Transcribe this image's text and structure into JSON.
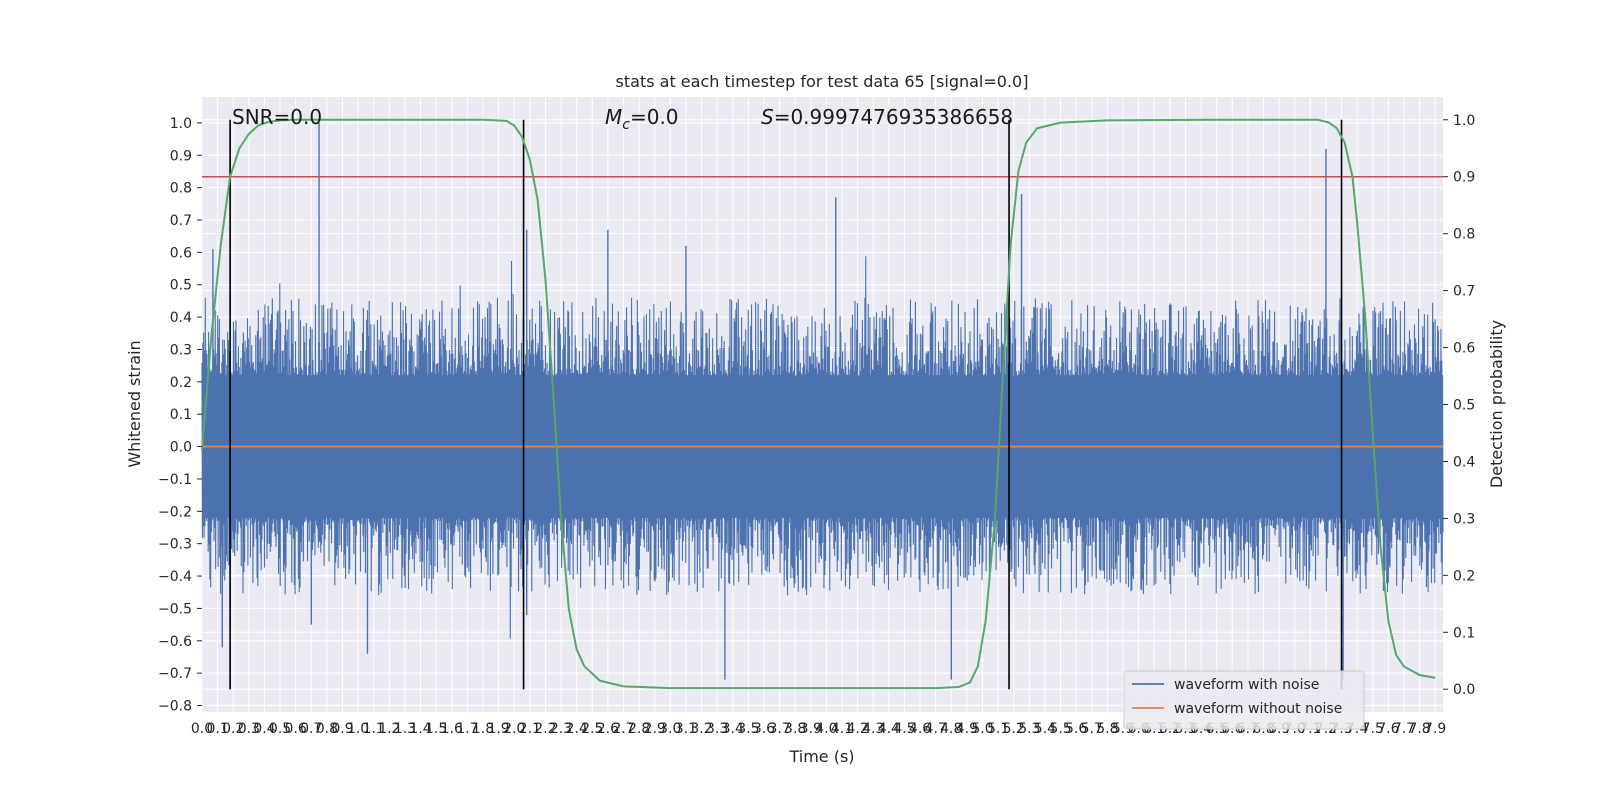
{
  "chart_data": {
    "type": "line",
    "title": "stats at each timestep for test data 65 [signal=0.0]",
    "xlabel": "Time (s)",
    "ylabel": "Whitened strain",
    "y2label": "Detection probability",
    "xlim": [
      0.0,
      7.95
    ],
    "ylim": [
      -0.82,
      1.08
    ],
    "y2lim": [
      -0.04,
      1.04
    ],
    "x_ticks": [
      0.0,
      0.1,
      0.2,
      0.3,
      0.4,
      0.5,
      0.6,
      0.7,
      0.8,
      0.9,
      1.0,
      1.1,
      1.2,
      1.3,
      1.4,
      1.5,
      1.6,
      1.7,
      1.8,
      1.9,
      2.0,
      2.1,
      2.2,
      2.3,
      2.4,
      2.5,
      2.6,
      2.7,
      2.8,
      2.9,
      3.0,
      3.1,
      3.2,
      3.3,
      3.4,
      3.5,
      3.6,
      3.7,
      3.8,
      3.9,
      4.0,
      4.1,
      4.2,
      4.3,
      4.4,
      4.5,
      4.6,
      4.7,
      4.8,
      4.9,
      5.0,
      5.1,
      5.2,
      5.3,
      5.4,
      5.5,
      5.6,
      5.7,
      5.8,
      5.9,
      6.0,
      6.1,
      6.2,
      6.3,
      6.4,
      6.5,
      6.6,
      6.7,
      6.8,
      6.9,
      7.0,
      7.1,
      7.2,
      7.3,
      7.4,
      7.5,
      7.6,
      7.7,
      7.8,
      7.9
    ],
    "x_tick_labels": [
      "0.0",
      "0.1",
      "0.2",
      "0.3",
      "0.4",
      "0.5",
      "0.6",
      "0.7",
      "0.8",
      "0.9",
      "1.0",
      "1.1",
      "1.2",
      "1.3",
      "1.4",
      "1.5",
      "1.6",
      "1.7",
      "1.8",
      "1.9",
      "2.0",
      "2.1",
      "2.2",
      "2.3",
      "2.4",
      "2.5",
      "2.6",
      "2.7",
      "2.8",
      "2.9",
      "3.0",
      "3.1",
      "3.2",
      "3.3",
      "3.4",
      "3.5",
      "3.6",
      "3.7",
      "3.8",
      "3.9",
      "4.0",
      "4.1",
      "4.2",
      "4.3",
      "4.4",
      "4.5",
      "4.6",
      "4.7",
      "4.8",
      "4.9",
      "5.0",
      "5.1",
      "5.2",
      "5.3",
      "5.4",
      "5.5",
      "5.6",
      "5.7",
      "5.8",
      "5.9",
      "6.0",
      "6.1",
      "6.2",
      "6.3",
      "6.4",
      "6.5",
      "6.6",
      "6.7",
      "6.8",
      "6.9",
      "7.0",
      "7.1",
      "7.2",
      "7.3",
      "7.4",
      "7.5",
      "7.6",
      "7.7",
      "7.8",
      "7.9"
    ],
    "y_ticks": [
      -0.8,
      -0.7,
      -0.6,
      -0.5,
      -0.4,
      -0.3,
      -0.2,
      -0.1,
      0.0,
      0.1,
      0.2,
      0.3,
      0.4,
      0.5,
      0.6,
      0.7,
      0.8,
      0.9,
      1.0
    ],
    "y_tick_labels": [
      "−0.8",
      "−0.7",
      "−0.6",
      "−0.5",
      "−0.4",
      "−0.3",
      "−0.2",
      "−0.1",
      "0.0",
      "0.1",
      "0.2",
      "0.3",
      "0.4",
      "0.5",
      "0.6",
      "0.7",
      "0.8",
      "0.9",
      "1.0"
    ],
    "y2_ticks": [
      0.0,
      0.1,
      0.2,
      0.3,
      0.4,
      0.5,
      0.6,
      0.7,
      0.8,
      0.9,
      1.0
    ],
    "y2_tick_labels": [
      "0.0",
      "0.1",
      "0.2",
      "0.3",
      "0.4",
      "0.5",
      "0.6",
      "0.7",
      "0.8",
      "0.9",
      "1.0"
    ],
    "grid": true,
    "legend_position": "bottom-right",
    "annotations": {
      "snr": "SNR=0.0",
      "mc_symbol": "M",
      "mc_subscript": "c",
      "mc_value": "=0.0",
      "s_symbol": "S",
      "s_value": "=0.9997476935386658"
    },
    "series": [
      {
        "name": "waveform with noise",
        "color": "#4c72b0",
        "kind": "noise",
        "x_range": [
          0.0,
          7.95
        ],
        "envelope_typical": 0.4,
        "spikes": [
          {
            "x": 0.07,
            "y": 0.61
          },
          {
            "x": 0.13,
            "y": -0.62
          },
          {
            "x": 0.75,
            "y": 1.0
          },
          {
            "x": 0.7,
            "y": -0.55
          },
          {
            "x": 2.08,
            "y": 0.67
          },
          {
            "x": 2.08,
            "y": -0.52
          },
          {
            "x": 3.35,
            "y": -0.72
          },
          {
            "x": 4.06,
            "y": 0.77
          },
          {
            "x": 4.8,
            "y": -0.72
          },
          {
            "x": 5.25,
            "y": 0.78
          },
          {
            "x": 7.2,
            "y": 0.92
          },
          {
            "x": 7.31,
            "y": -0.72
          },
          {
            "x": 2.6,
            "y": 0.67
          },
          {
            "x": 1.06,
            "y": -0.64
          },
          {
            "x": 3.1,
            "y": 0.62
          }
        ]
      },
      {
        "name": "waveform without noise",
        "color": "#dd8452",
        "kind": "flat",
        "x": [
          0.0,
          7.95
        ],
        "y": [
          0.0,
          0.0
        ]
      },
      {
        "color": "#55a868",
        "axis": "right",
        "x": [
          0.0,
          0.06,
          0.12,
          0.18,
          0.24,
          0.3,
          0.36,
          0.42,
          0.5,
          0.6,
          1.0,
          1.8,
          1.95,
          2.0,
          2.05,
          2.1,
          2.15,
          2.2,
          2.25,
          2.3,
          2.35,
          2.4,
          2.45,
          2.55,
          2.7,
          3.0,
          4.0,
          4.7,
          4.85,
          4.92,
          4.97,
          5.02,
          5.08,
          5.13,
          5.18,
          5.23,
          5.28,
          5.35,
          5.5,
          5.8,
          6.5,
          7.15,
          7.22,
          7.27,
          7.32,
          7.37,
          7.4,
          7.45,
          7.5,
          7.55,
          7.6,
          7.65,
          7.7,
          7.8,
          7.9
        ],
        "y": [
          0.42,
          0.62,
          0.78,
          0.9,
          0.95,
          0.975,
          0.99,
          0.996,
          0.999,
          1.0,
          1.0,
          1.0,
          0.998,
          0.99,
          0.97,
          0.93,
          0.86,
          0.72,
          0.52,
          0.3,
          0.14,
          0.07,
          0.04,
          0.015,
          0.005,
          0.002,
          0.002,
          0.002,
          0.004,
          0.012,
          0.04,
          0.12,
          0.3,
          0.55,
          0.78,
          0.91,
          0.96,
          0.985,
          0.995,
          0.999,
          1.0,
          1.0,
          0.995,
          0.985,
          0.96,
          0.9,
          0.82,
          0.66,
          0.45,
          0.25,
          0.12,
          0.06,
          0.04,
          0.025,
          0.02
        ]
      }
    ],
    "hlines": [
      {
        "y": 0.9,
        "axis": "right",
        "color": "#c44e52"
      }
    ],
    "vlines": [
      {
        "x": 0.18,
        "color": "#000000"
      },
      {
        "x": 2.06,
        "color": "#000000"
      },
      {
        "x": 5.17,
        "color": "#000000"
      },
      {
        "x": 7.3,
        "color": "#000000"
      }
    ]
  }
}
